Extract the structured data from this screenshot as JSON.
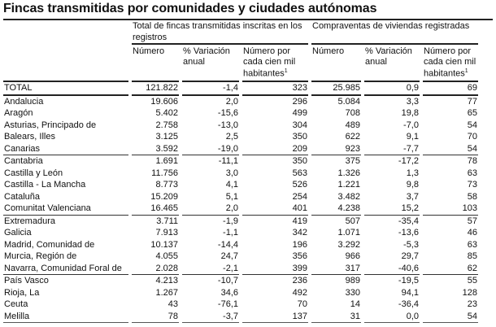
{
  "title": "Fincas transmitidas por comunidades y ciudades autónomas",
  "groups": [
    "Total de fincas transmitidas inscritas en los registros",
    "Compraventas de viviendas registradas"
  ],
  "subheaders": {
    "numero": "Número",
    "variacion": "% Variación anual",
    "por_cien_mil": "Número por cada cien mil habitantes",
    "footnote_mark": "1"
  },
  "rows": [
    [
      "TOTAL",
      "121.822",
      "-1,4",
      "323",
      "25.985",
      "0,9",
      "69"
    ],
    [
      "Andalucia",
      "19.606",
      "2,0",
      "296",
      "5.084",
      "3,3",
      "77"
    ],
    [
      "Aragón",
      "5.402",
      "-15,6",
      "499",
      "708",
      "19,8",
      "65"
    ],
    [
      "Asturias, Principado de",
      "2.758",
      "-13,0",
      "304",
      "489",
      "-7,0",
      "54"
    ],
    [
      "Balears, Illes",
      "3.125",
      "2,5",
      "350",
      "622",
      "9,1",
      "70"
    ],
    [
      "Canarias",
      "3.592",
      "-19,0",
      "209",
      "923",
      "-7,7",
      "54"
    ],
    [
      "Cantabria",
      "1.691",
      "-11,1",
      "350",
      "375",
      "-17,2",
      "78"
    ],
    [
      "Castilla y León",
      "11.756",
      "3,0",
      "563",
      "1.326",
      "1,3",
      "63"
    ],
    [
      "Castilla - La Mancha",
      "8.773",
      "4,1",
      "526",
      "1.221",
      "9,8",
      "73"
    ],
    [
      "Cataluña",
      "15.209",
      "5,1",
      "254",
      "3.482",
      "3,7",
      "58"
    ],
    [
      "Comunitat Valenciana",
      "16.465",
      "2,0",
      "401",
      "4.238",
      "15,2",
      "103"
    ],
    [
      "Extremadura",
      "3.711",
      "-1,9",
      "419",
      "507",
      "-35,4",
      "57"
    ],
    [
      "Galicia",
      "7.913",
      "-1,1",
      "342",
      "1.071",
      "-13,6",
      "46"
    ],
    [
      "Madrid, Comunidad de",
      "10.137",
      "-14,4",
      "196",
      "3.292",
      "-5,3",
      "63"
    ],
    [
      "Murcia, Región de",
      "4.055",
      "24,7",
      "356",
      "966",
      "29,7",
      "85"
    ],
    [
      "Navarra, Comunidad Foral de",
      "2.028",
      "-2,1",
      "399",
      "317",
      "-40,6",
      "62"
    ],
    [
      "País Vasco",
      "4.213",
      "-10,7",
      "236",
      "989",
      "-19,5",
      "55"
    ],
    [
      "Rioja, La",
      "1.267",
      "34,6",
      "492",
      "330",
      "94,1",
      "128"
    ],
    [
      "Ceuta",
      "43",
      "-76,1",
      "70",
      "14",
      "-36,4",
      "23"
    ],
    [
      "Melilla",
      "78",
      "-3,7",
      "137",
      "31",
      "0,0",
      "54"
    ]
  ]
}
